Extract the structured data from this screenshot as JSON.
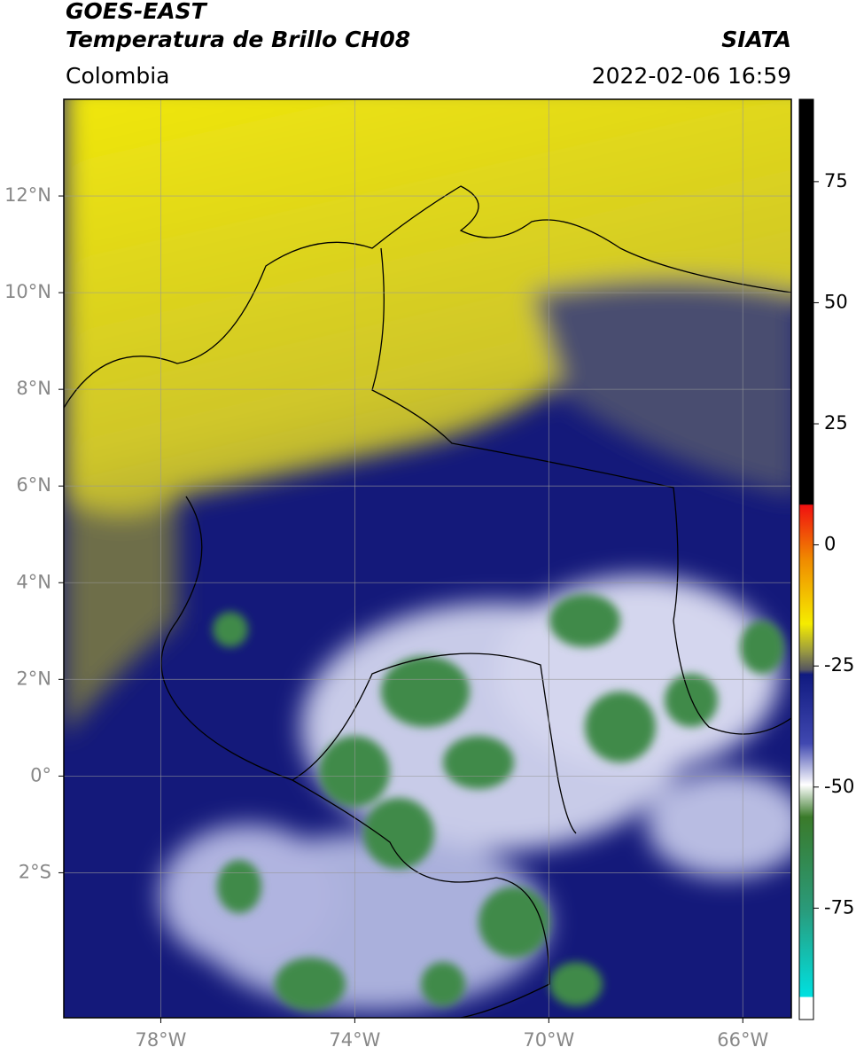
{
  "header": {
    "title": "GOES-EAST",
    "subtitle": "Temperatura de Brillo CH08",
    "region": "Colombia",
    "source": "SIATA",
    "datetime": "2022-02-06 16:59"
  },
  "map": {
    "xlim": [
      -80,
      -65
    ],
    "ylim": [
      -5,
      14
    ],
    "xticks": [
      {
        "value": -78,
        "label": "78°W"
      },
      {
        "value": -74,
        "label": "74°W"
      },
      {
        "value": -70,
        "label": "70°W"
      },
      {
        "value": -66,
        "label": "66°W"
      }
    ],
    "yticks": [
      {
        "value": 12,
        "label": "12°N"
      },
      {
        "value": 10,
        "label": "10°N"
      },
      {
        "value": 8,
        "label": "8°N"
      },
      {
        "value": 6,
        "label": "6°N"
      },
      {
        "value": 4,
        "label": "4°N"
      },
      {
        "value": 2,
        "label": "2°N"
      },
      {
        "value": 0,
        "label": "0°"
      },
      {
        "value": -2,
        "label": "2°S"
      }
    ],
    "grid": true
  },
  "colorbar": {
    "lim": [
      -98,
      92
    ],
    "ticks": [
      75,
      50,
      25,
      0,
      -25,
      -50,
      -75
    ]
  }
}
